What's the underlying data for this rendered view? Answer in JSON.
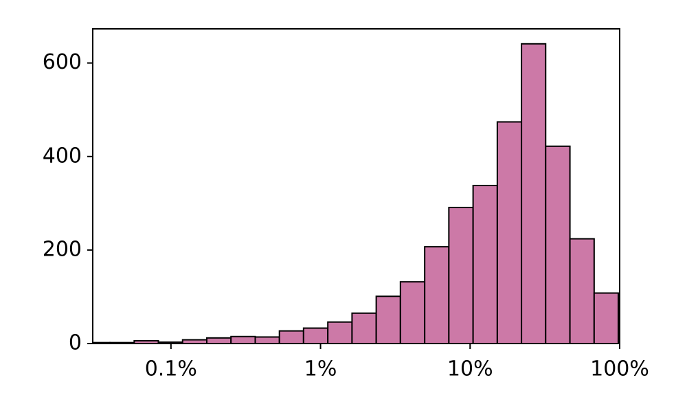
{
  "chart_data": {
    "type": "histogram",
    "xscale": "log",
    "color": "#cc79a7",
    "edgecolor": "#000000",
    "bins": [
      0.0269,
      0.0391,
      0.0568,
      0.0824,
      0.1196,
      0.1736,
      0.252,
      0.366,
      0.531,
      0.77,
      1.119,
      1.624,
      2.357,
      3.42,
      4.97,
      7.21,
      10.47,
      15.2,
      22.06,
      32.0,
      46.5,
      67.5,
      97.9,
      142
    ],
    "counts": [
      2,
      2,
      6,
      3,
      8,
      12,
      15,
      14,
      27,
      33,
      46,
      65,
      101,
      132,
      207,
      291,
      338,
      474,
      641,
      422,
      224,
      108,
      10
    ],
    "xlim": [
      0.03,
      100
    ],
    "xticks": [
      {
        "value": 0.1,
        "label": "0.1%"
      },
      {
        "value": 1,
        "label": "1%"
      },
      {
        "value": 10,
        "label": "10%"
      },
      {
        "value": 100,
        "label": "100%"
      }
    ],
    "ylim": [
      0,
      673
    ],
    "yticks": [
      0,
      200,
      400,
      600
    ]
  }
}
